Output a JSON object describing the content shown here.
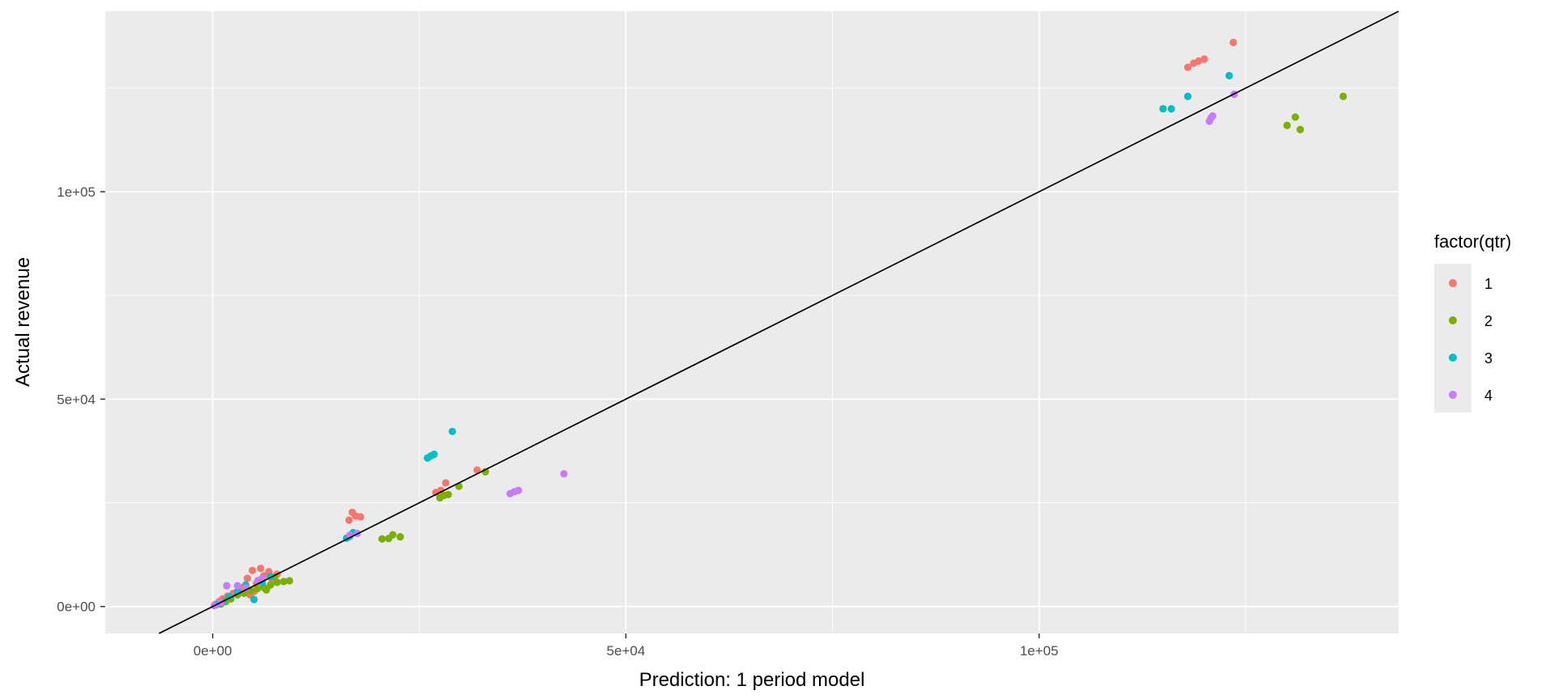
{
  "chart_data": {
    "type": "scatter",
    "title": "",
    "xlabel": "Prediction: 1 period model",
    "ylabel": "Actual revenue",
    "xlim": [
      -13000,
      143500
    ],
    "ylim": [
      -6500,
      143500
    ],
    "x_ticks": [
      0,
      50000,
      100000
    ],
    "x_tick_labels": [
      "0e+00",
      "5e+04",
      "1e+05"
    ],
    "y_ticks": [
      0,
      50000,
      100000
    ],
    "y_tick_labels": [
      "0e+00",
      "5e+04",
      "1e+05"
    ],
    "grid": true,
    "legend_position": "right",
    "legend_title": "factor(qtr)",
    "reference_line": {
      "type": "identity",
      "slope": 1,
      "intercept": 0,
      "color": "#000000"
    },
    "series": [
      {
        "name": "1",
        "color": "#F8766D",
        "points": [
          [
            300,
            500
          ],
          [
            800,
            1200
          ],
          [
            1200,
            1800
          ],
          [
            1800,
            2500
          ],
          [
            2500,
            3200
          ],
          [
            3500,
            4500
          ],
          [
            4200,
            6800
          ],
          [
            4800,
            8700
          ],
          [
            5300,
            5600
          ],
          [
            5800,
            9200
          ],
          [
            6200,
            7400
          ],
          [
            6800,
            8400
          ],
          [
            7200,
            6500
          ],
          [
            7800,
            7800
          ],
          [
            5000,
            3600
          ],
          [
            4500,
            2800
          ],
          [
            16500,
            20800
          ],
          [
            16900,
            22700
          ],
          [
            17300,
            21800
          ],
          [
            17900,
            21600
          ],
          [
            27000,
            27500
          ],
          [
            27600,
            28000
          ],
          [
            28200,
            29800
          ],
          [
            32000,
            32900
          ],
          [
            118000,
            130000
          ],
          [
            118700,
            131000
          ],
          [
            119300,
            131500
          ],
          [
            120000,
            132000
          ],
          [
            123500,
            136000
          ]
        ]
      },
      {
        "name": "2",
        "color": "#7CAE00",
        "points": [
          [
            1000,
            600
          ],
          [
            1600,
            1200
          ],
          [
            2200,
            1800
          ],
          [
            3000,
            2800
          ],
          [
            3800,
            3200
          ],
          [
            4600,
            3800
          ],
          [
            5400,
            4300
          ],
          [
            6200,
            4600
          ],
          [
            7000,
            5200
          ],
          [
            7800,
            5800
          ],
          [
            8600,
            6000
          ],
          [
            9300,
            6200
          ],
          [
            6500,
            4000
          ],
          [
            7500,
            7200
          ],
          [
            20500,
            16300
          ],
          [
            21300,
            16400
          ],
          [
            21800,
            17300
          ],
          [
            22700,
            16800
          ],
          [
            27500,
            26200
          ],
          [
            28000,
            26800
          ],
          [
            28500,
            27000
          ],
          [
            29800,
            29000
          ],
          [
            33000,
            32500
          ],
          [
            130000,
            116000
          ],
          [
            131000,
            118000
          ],
          [
            131600,
            115000
          ],
          [
            136800,
            123000
          ]
        ]
      },
      {
        "name": "3",
        "color": "#00BFC4",
        "points": [
          [
            500,
            500
          ],
          [
            1200,
            1000
          ],
          [
            2000,
            2400
          ],
          [
            3000,
            3600
          ],
          [
            4000,
            5200
          ],
          [
            5000,
            1700
          ],
          [
            6000,
            5800
          ],
          [
            7000,
            7200
          ],
          [
            16200,
            16500
          ],
          [
            16600,
            16900
          ],
          [
            17000,
            17800
          ],
          [
            26000,
            35800
          ],
          [
            26400,
            36300
          ],
          [
            26800,
            36700
          ],
          [
            29000,
            42200
          ],
          [
            115000,
            120000
          ],
          [
            116000,
            120000
          ],
          [
            118000,
            123000
          ],
          [
            123000,
            128000
          ]
        ]
      },
      {
        "name": "4",
        "color": "#C77CFF",
        "points": [
          [
            200,
            200
          ],
          [
            1000,
            900
          ],
          [
            1700,
            5000
          ],
          [
            3000,
            5000
          ],
          [
            4000,
            4500
          ],
          [
            5500,
            6300
          ],
          [
            6000,
            6800
          ],
          [
            16600,
            17200
          ],
          [
            17500,
            17600
          ],
          [
            36000,
            27200
          ],
          [
            36500,
            27700
          ],
          [
            37000,
            28000
          ],
          [
            42500,
            32000
          ],
          [
            120600,
            117000
          ],
          [
            120800,
            117800
          ],
          [
            121000,
            118300
          ],
          [
            123600,
            123500
          ]
        ]
      }
    ]
  }
}
